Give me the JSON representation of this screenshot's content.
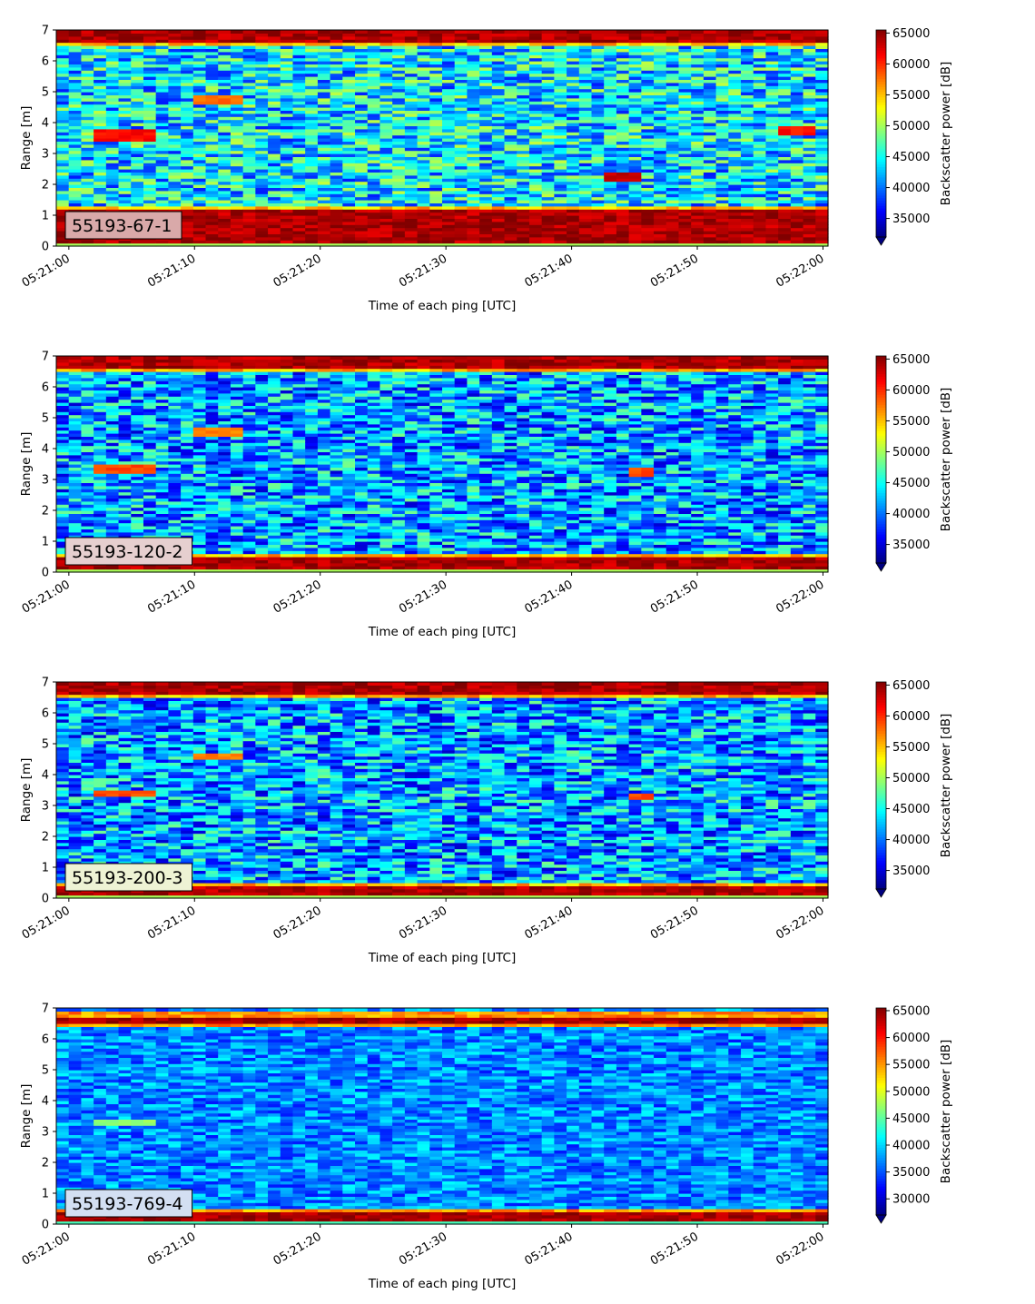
{
  "chart_data": [
    {
      "type": "heatmap",
      "panel_label": "55193-67-1",
      "xlabel": "Time of each ping [UTC]",
      "ylabel": "Range [m]",
      "colorbar_label": "Backscatter power [dB]",
      "colormap": "jet",
      "x_ticks": [
        "05:21:00",
        "05:21:10",
        "05:21:20",
        "05:21:30",
        "05:21:40",
        "05:21:50",
        "05:22:00"
      ],
      "y_ticks": [
        0,
        1,
        2,
        3,
        4,
        5,
        6,
        7
      ],
      "ylim": [
        0,
        7
      ],
      "clim": [
        32000,
        65500
      ],
      "colorbar_ticks": [
        35000,
        40000,
        45000,
        50000,
        55000,
        60000,
        65000
      ],
      "colorbar_extend": "min",
      "label_box_color": "#d9a9a9",
      "strong_bands_m": [
        [
          0.15,
          1.2
        ],
        [
          6.6,
          7.0
        ]
      ],
      "features": [
        {
          "time": "05:21:02-05:21:07",
          "range_m": [
            3.4,
            3.8
          ],
          "level": 60000
        },
        {
          "time": "05:21:10-05:21:14",
          "range_m": [
            4.6,
            4.9
          ],
          "level": 57000
        },
        {
          "time": "05:21:43-05:21:46",
          "range_m": [
            2.1,
            2.4
          ],
          "level": 62000
        },
        {
          "time": "05:21:56-05:21:59",
          "range_m": [
            3.6,
            3.9
          ],
          "level": 60000
        }
      ]
    },
    {
      "type": "heatmap",
      "panel_label": "55193-120-2",
      "xlabel": "Time of each ping [UTC]",
      "ylabel": "Range [m]",
      "colorbar_label": "Backscatter power [dB]",
      "colormap": "jet",
      "x_ticks": [
        "05:21:00",
        "05:21:10",
        "05:21:20",
        "05:21:30",
        "05:21:40",
        "05:21:50",
        "05:22:00"
      ],
      "y_ticks": [
        0,
        1,
        2,
        3,
        4,
        5,
        6,
        7
      ],
      "ylim": [
        0,
        7
      ],
      "clim": [
        32000,
        65500
      ],
      "colorbar_ticks": [
        35000,
        40000,
        45000,
        50000,
        55000,
        60000,
        65000
      ],
      "colorbar_extend": "min",
      "label_box_color": "#e6cfcf",
      "strong_bands_m": [
        [
          0.15,
          0.5
        ],
        [
          6.6,
          7.0
        ]
      ],
      "features": [
        {
          "time": "05:21:02-05:21:07",
          "range_m": [
            3.2,
            3.5
          ],
          "level": 58000
        },
        {
          "time": "05:21:10-05:21:14",
          "range_m": [
            4.4,
            4.7
          ],
          "level": 56000
        },
        {
          "time": "05:21:45-05:21:47",
          "range_m": [
            3.1,
            3.4
          ],
          "level": 58000
        }
      ]
    },
    {
      "type": "heatmap",
      "panel_label": "55193-200-3",
      "xlabel": "Time of each ping [UTC]",
      "ylabel": "Range [m]",
      "colorbar_label": "Backscatter power [dB]",
      "colormap": "jet",
      "x_ticks": [
        "05:21:00",
        "05:21:10",
        "05:21:20",
        "05:21:30",
        "05:21:40",
        "05:21:50",
        "05:22:00"
      ],
      "y_ticks": [
        0,
        1,
        2,
        3,
        4,
        5,
        6,
        7
      ],
      "ylim": [
        0,
        7
      ],
      "clim": [
        32000,
        65500
      ],
      "colorbar_ticks": [
        35000,
        40000,
        45000,
        50000,
        55000,
        60000,
        65000
      ],
      "colorbar_extend": "min",
      "label_box_color": "#eef3d4",
      "strong_bands_m": [
        [
          0.15,
          0.4
        ],
        [
          6.6,
          7.0
        ]
      ],
      "features": [
        {
          "time": "05:21:02-05:21:07",
          "range_m": [
            3.3,
            3.5
          ],
          "level": 58000
        },
        {
          "time": "05:21:10-05:21:14",
          "range_m": [
            4.5,
            4.7
          ],
          "level": 56000
        },
        {
          "time": "05:21:45-05:21:47",
          "range_m": [
            3.2,
            3.4
          ],
          "level": 58000
        }
      ]
    },
    {
      "type": "heatmap",
      "panel_label": "55193-769-4",
      "xlabel": "Time of each ping [UTC]",
      "ylabel": "Range [m]",
      "colorbar_label": "Backscatter power [dB]",
      "colormap": "jet",
      "x_ticks": [
        "05:21:00",
        "05:21:10",
        "05:21:20",
        "05:21:30",
        "05:21:40",
        "05:21:50",
        "05:22:00"
      ],
      "y_ticks": [
        0,
        1,
        2,
        3,
        4,
        5,
        6,
        7
      ],
      "ylim": [
        0,
        7
      ],
      "clim": [
        27000,
        65500
      ],
      "colorbar_ticks": [
        30000,
        35000,
        40000,
        45000,
        50000,
        55000,
        60000,
        65000
      ],
      "colorbar_extend": "min",
      "label_box_color": "#d3dff2",
      "strong_bands_m": [
        [
          0.15,
          0.4
        ],
        [
          6.5,
          6.7
        ]
      ],
      "features": [
        {
          "time": "05:21:02-05:21:07",
          "range_m": [
            3.2,
            3.4
          ],
          "level": 46000
        }
      ]
    }
  ]
}
